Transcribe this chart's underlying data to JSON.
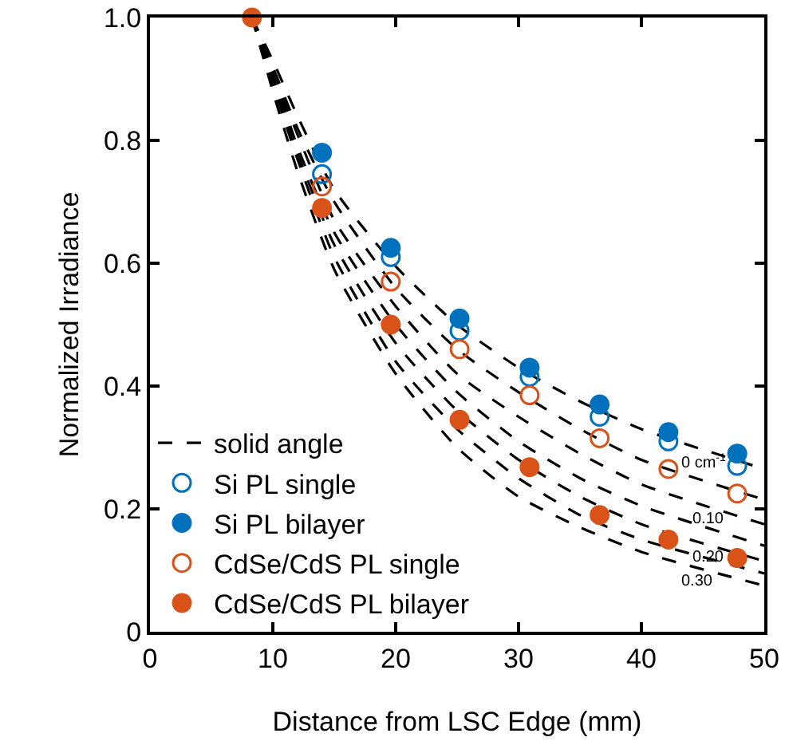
{
  "chart_data": {
    "type": "scatter",
    "xlabel": "Distance from LSC Edge (mm)",
    "ylabel": "Normalized Irradiance",
    "xlim": [
      0,
      50
    ],
    "xticks": [
      0,
      10,
      20,
      30,
      40,
      50
    ],
    "ylim": [
      0,
      1
    ],
    "yticks": [
      0,
      0.2,
      0.4,
      0.6,
      0.8,
      {
        "value": 1,
        "label": "1.0"
      }
    ],
    "grid": false,
    "legend": "bottom left",
    "series": [
      {
        "name": "solid angle",
        "type": "line",
        "line_style": "dashed",
        "marker": "none",
        "color": "#000000",
        "x": [
          8.3,
          10,
          12,
          15,
          20,
          25,
          30,
          35,
          40,
          50
        ],
        "values": [
          1.0,
          0.93,
          0.84,
          0.72,
          0.595,
          0.5,
          0.43,
          0.375,
          0.33,
          0.265
        ]
      },
      {
        "type": "line",
        "line_style": "dashed",
        "marker": "none",
        "color": "#000000",
        "x": [
          8.3,
          10,
          12,
          15,
          20,
          25,
          30,
          35,
          40,
          50
        ],
        "values": [
          1.0,
          0.92,
          0.82,
          0.7,
          0.56,
          0.46,
          0.39,
          0.33,
          0.28,
          0.215
        ]
      },
      {
        "type": "line",
        "line_style": "dashed",
        "marker": "none",
        "color": "#000000",
        "x": [
          8.3,
          10,
          12,
          15,
          20,
          25,
          30,
          35,
          40,
          50
        ],
        "values": [
          1.0,
          0.91,
          0.81,
          0.67,
          0.53,
          0.42,
          0.35,
          0.29,
          0.24,
          0.175
        ]
      },
      {
        "type": "line",
        "line_style": "dashed",
        "marker": "none",
        "color": "#000000",
        "x": [
          8.3,
          10,
          12,
          15,
          20,
          25,
          30,
          35,
          40,
          50
        ],
        "values": [
          1.0,
          0.91,
          0.79,
          0.65,
          0.5,
          0.39,
          0.31,
          0.25,
          0.205,
          0.14
        ]
      },
      {
        "type": "line",
        "line_style": "dashed",
        "marker": "none",
        "color": "#000000",
        "x": [
          8.3,
          10,
          12,
          15,
          20,
          25,
          30,
          35,
          40,
          50
        ],
        "values": [
          1.0,
          0.9,
          0.78,
          0.63,
          0.47,
          0.36,
          0.28,
          0.22,
          0.175,
          0.115
        ]
      },
      {
        "type": "line",
        "line_style": "dashed",
        "marker": "none",
        "color": "#000000",
        "x": [
          8.3,
          10,
          12,
          15,
          20,
          25,
          30,
          35,
          40,
          50
        ],
        "values": [
          1.0,
          0.89,
          0.77,
          0.61,
          0.44,
          0.33,
          0.25,
          0.19,
          0.15,
          0.095
        ]
      },
      {
        "type": "line",
        "line_style": "dashed",
        "marker": "none",
        "color": "#000000",
        "x": [
          8.3,
          10,
          12,
          15,
          20,
          25,
          30,
          35,
          40,
          50
        ],
        "values": [
          1.0,
          0.88,
          0.75,
          0.59,
          0.42,
          0.3,
          0.22,
          0.17,
          0.13,
          0.075
        ]
      },
      {
        "name": "Si PL single",
        "marker": "circle-open",
        "color": "#0072bd",
        "x": [
          14,
          19.6,
          25.2,
          30.9,
          36.6,
          42.2,
          47.8
        ],
        "values": [
          0.745,
          0.61,
          0.49,
          0.415,
          0.35,
          0.31,
          0.27
        ]
      },
      {
        "name": "Si PL bilayer",
        "marker": "circle",
        "color": "#0072bd",
        "x": [
          14,
          19.6,
          25.2,
          30.9,
          36.6,
          42.2,
          47.8
        ],
        "values": [
          0.78,
          0.625,
          0.51,
          0.43,
          0.37,
          0.325,
          0.29
        ]
      },
      {
        "name": "CdSe/CdS PL single",
        "marker": "circle-open",
        "color": "#d95319",
        "x": [
          14,
          19.6,
          25.2,
          30.9,
          36.6,
          42.2,
          47.8
        ],
        "values": [
          0.725,
          0.57,
          0.46,
          0.385,
          0.315,
          0.265,
          0.225
        ]
      },
      {
        "name": "CdSe/CdS PL bilayer",
        "marker": "circle",
        "color": "#d95319",
        "x": [
          8.3,
          14,
          19.6,
          25.2,
          30.9,
          36.6,
          42.2,
          47.8
        ],
        "values": [
          1.0,
          0.69,
          0.5,
          0.345,
          0.268,
          0.19,
          0.15,
          0.12
        ]
      }
    ],
    "annotations": [
      {
        "text": "0 cm$^{-1}$",
        "x": 45.0,
        "y": 0.2975
      },
      {
        "text": "0.10",
        "x": 45.5,
        "y": 0.204
      },
      {
        "text": "0.20",
        "x": 45.5,
        "y": 0.142
      },
      {
        "text": "0.30",
        "x": 44.5,
        "y": 0.105
      }
    ]
  }
}
